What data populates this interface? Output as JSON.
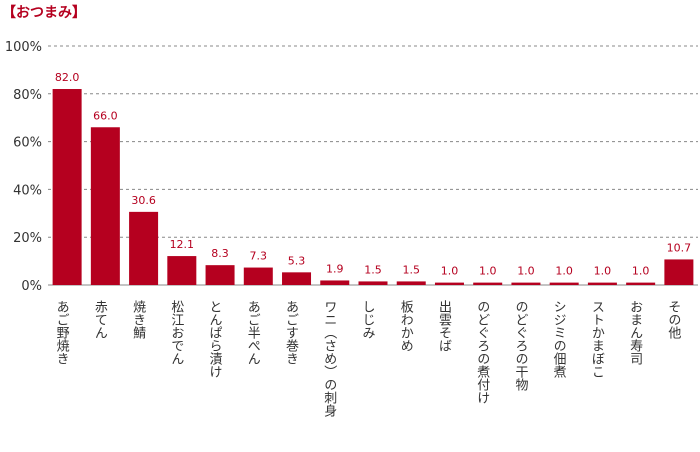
{
  "chart_data": {
    "type": "bar",
    "title": "【おつまみ】",
    "categories": [
      "あご野焼き",
      "赤てん",
      "焼き鯖",
      "松江おでん",
      "とんぱら漬け",
      "あご半ぺん",
      "あごす巻き",
      "ワニ（さめ）の刺身",
      "しじみ",
      "板わかめ",
      "出雲そば",
      "のどぐろの煮付け",
      "のどぐろの干物",
      "シジミの佃煮",
      "ストかまぼこ",
      "おまん寿司",
      "その他"
    ],
    "values": [
      82.0,
      66.0,
      30.6,
      12.1,
      8.3,
      7.3,
      5.3,
      1.9,
      1.5,
      1.5,
      1.0,
      1.0,
      1.0,
      1.0,
      1.0,
      1.0,
      10.7
    ],
    "value_labels": [
      "82.0",
      "66.0",
      "30.6",
      "12.1",
      "8.3",
      "7.3",
      "5.3",
      "1.9",
      "1.5",
      "1.5",
      "1.0",
      "1.0",
      "1.0",
      "1.0",
      "1.0",
      "1.0",
      "10.7"
    ],
    "yticks": [
      "0%",
      "20%",
      "40%",
      "60%",
      "80%",
      "100%"
    ],
    "ylim": [
      0,
      100
    ],
    "grid": true,
    "bar_color": "#b5001f",
    "label_color": "#b5001f",
    "text_color": "#333333",
    "grid_color": "#888888"
  }
}
